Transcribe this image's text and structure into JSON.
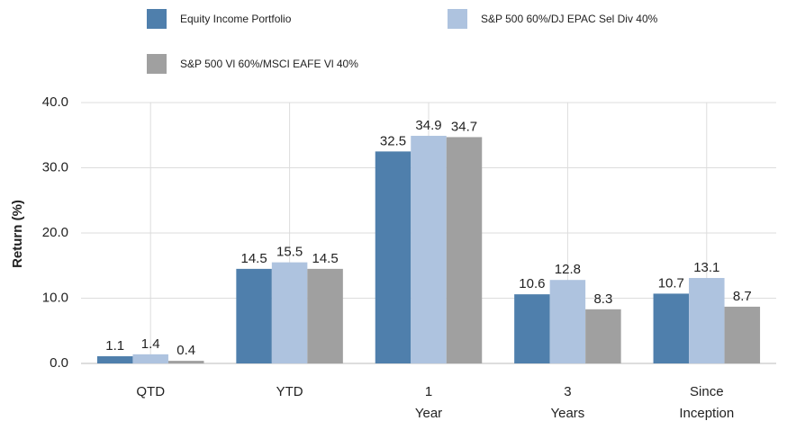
{
  "chart_data": {
    "type": "bar",
    "y_label": "Return (%)",
    "categories": [
      "QTD",
      "YTD",
      "1 Year",
      "3 Years",
      "Since Inception"
    ],
    "series": [
      {
        "name": "Equity Income Portfolio",
        "color": "#4f7fac",
        "values": [
          1.1,
          14.5,
          32.5,
          10.6,
          10.7
        ]
      },
      {
        "name": "S&P 500 60%/DJ EPAC Sel Div 40%",
        "color": "#aec3df",
        "values": [
          1.4,
          15.5,
          34.9,
          12.8,
          13.1
        ]
      },
      {
        "name": "S&P 500 Vl  60%/MSCI EAFE Vl 40%",
        "color": "#a0a0a0",
        "values": [
          0.4,
          14.5,
          34.7,
          8.3,
          8.7
        ]
      }
    ],
    "ylim": [
      0,
      40
    ],
    "yticks": [
      {
        "value": 0,
        "label": "0.0"
      },
      {
        "value": 10,
        "label": "10.0"
      },
      {
        "value": 20,
        "label": "20.0"
      },
      {
        "value": 30,
        "label": "30.0"
      },
      {
        "value": 40,
        "label": "40.0"
      }
    ],
    "grid": true
  }
}
